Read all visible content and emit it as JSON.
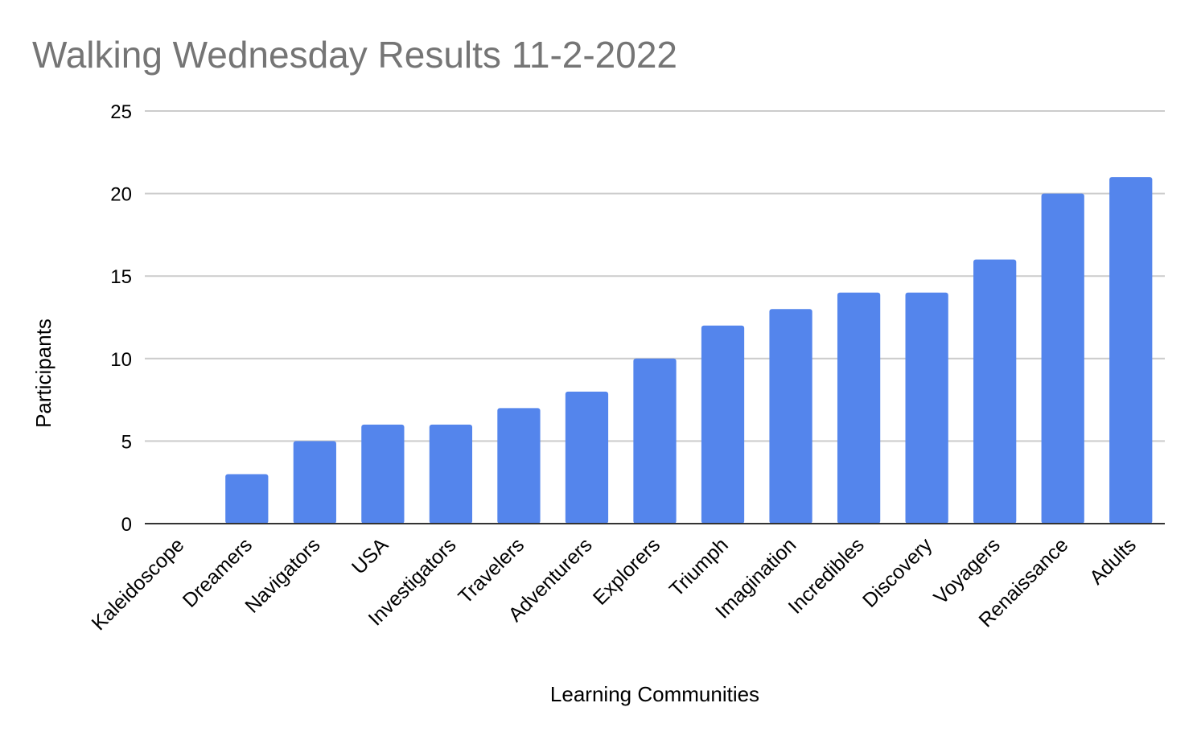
{
  "chart_data": {
    "type": "bar",
    "title": "Walking Wednesday Results 11-2-2022",
    "xlabel": "Learning Communities",
    "ylabel": "Participants",
    "categories": [
      "Kaleidoscope",
      "Dreamers",
      "Navigators",
      "USA",
      "Investigators",
      "Travelers",
      "Adventurers",
      "Explorers",
      "Triumph",
      "Imagination",
      "Incredibles",
      "Discovery",
      "Voyagers",
      "Renaissance",
      "Adults"
    ],
    "values": [
      0,
      3,
      5,
      6,
      6,
      7,
      8,
      10,
      12,
      13,
      14,
      14,
      16,
      20,
      21
    ],
    "ylim": [
      0,
      25
    ],
    "yticks": [
      0,
      5,
      10,
      15,
      20,
      25
    ],
    "grid": true,
    "bar_color": "#5485ec",
    "grid_color": "#cccccc",
    "axis_color": "#333333"
  }
}
